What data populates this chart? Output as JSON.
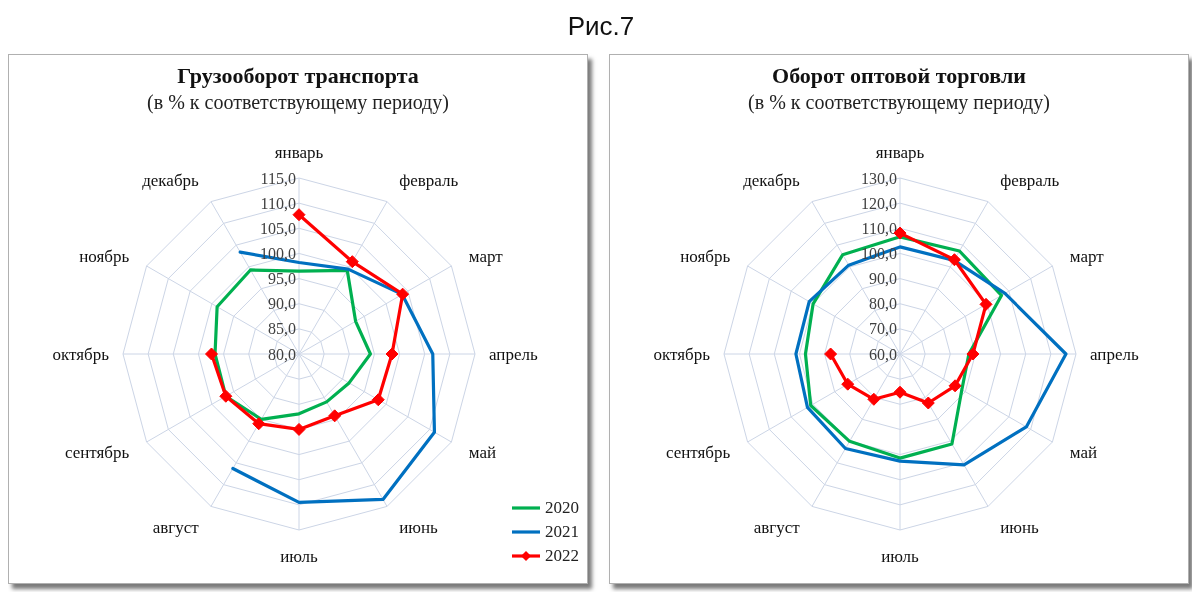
{
  "chart_data": [
    {
      "type": "radar",
      "title": "Грузооборот транспорта",
      "subtitle": "(в % к соответствующему периоду)",
      "annotations": [
        "Рис.7"
      ],
      "categories": [
        "январь",
        "февраль",
        "март",
        "апрель",
        "май",
        "июнь",
        "июль",
        "август",
        "сентябрь",
        "октябрь",
        "ноябрь",
        "декабрь"
      ],
      "series": [
        {
          "name": "2020",
          "color": "#00b050",
          "values": [
            96.5,
            99.2,
            93.0,
            94.2,
            91.5,
            91.0,
            91.9,
            95.0,
            96.8,
            96.7,
            98.8,
            99.3
          ]
        },
        {
          "name": "2021",
          "color": "#0070c0",
          "values": [
            98.2,
            99.5,
            103.7,
            106.6,
            111.1,
            113.4,
            109.5,
            106.3,
            null,
            null,
            null,
            103.4
          ]
        },
        {
          "name": "2022",
          "color": "#ff0000",
          "marker": "diamond",
          "values": [
            107.7,
            101.2,
            103.8,
            98.5,
            98.2,
            94.2,
            95.0,
            96.0,
            96.8,
            97.4,
            null,
            null
          ]
        }
      ],
      "ylim": [
        80,
        115
      ],
      "yticks": [
        {
          "value": 80,
          "label": "80,0"
        },
        {
          "value": 85,
          "label": "85,0"
        },
        {
          "value": 90,
          "label": "90,0"
        },
        {
          "value": 95,
          "label": "95,0"
        },
        {
          "value": 100,
          "label": "100,0"
        },
        {
          "value": 105,
          "label": "105,0"
        },
        {
          "value": 110,
          "label": "110,0"
        },
        {
          "value": 115,
          "label": "115,0"
        }
      ],
      "grid": true,
      "legend": "bottom right"
    },
    {
      "type": "radar",
      "title": "Оборот оптовой торговли",
      "subtitle": "(в % к соответствующему периоду)",
      "categories": [
        "январь",
        "февраль",
        "март",
        "апрель",
        "май",
        "июнь",
        "июль",
        "август",
        "сентябрь",
        "октябрь",
        "ноябрь",
        "декабрь"
      ],
      "series": [
        {
          "color": "#00b050",
          "values": [
            106.6,
            107.3,
            106.6,
            87.4,
            88.4,
            101.3,
            101.4,
            100.1,
            101.0,
            97.6,
            99.9,
            105.6
          ]
        },
        {
          "color": "#0070c0",
          "values": [
            102.6,
            103.0,
            108.2,
            126.0,
            118.0,
            110.9,
            102.6,
            103.4,
            102.5,
            101.4,
            101.7,
            100.8
          ]
        },
        {
          "color": "#ff0000",
          "marker": "diamond",
          "values": [
            108.1,
            103.3,
            99.5,
            89.0,
            85.3,
            82.5,
            75.2,
            80.8,
            84.0,
            87.6,
            null,
            null
          ]
        }
      ],
      "ylim": [
        60,
        130
      ],
      "yticks": [
        {
          "value": 60,
          "label": "60,0"
        },
        {
          "value": 70,
          "label": "70,0"
        },
        {
          "value": 80,
          "label": "80,0"
        },
        {
          "value": 90,
          "label": "90,0"
        },
        {
          "value": 100,
          "label": "100,0"
        },
        {
          "value": 110,
          "label": "110,0"
        },
        {
          "value": 120,
          "label": "120,0"
        },
        {
          "value": 130,
          "label": "130,0"
        }
      ],
      "grid": true
    }
  ]
}
